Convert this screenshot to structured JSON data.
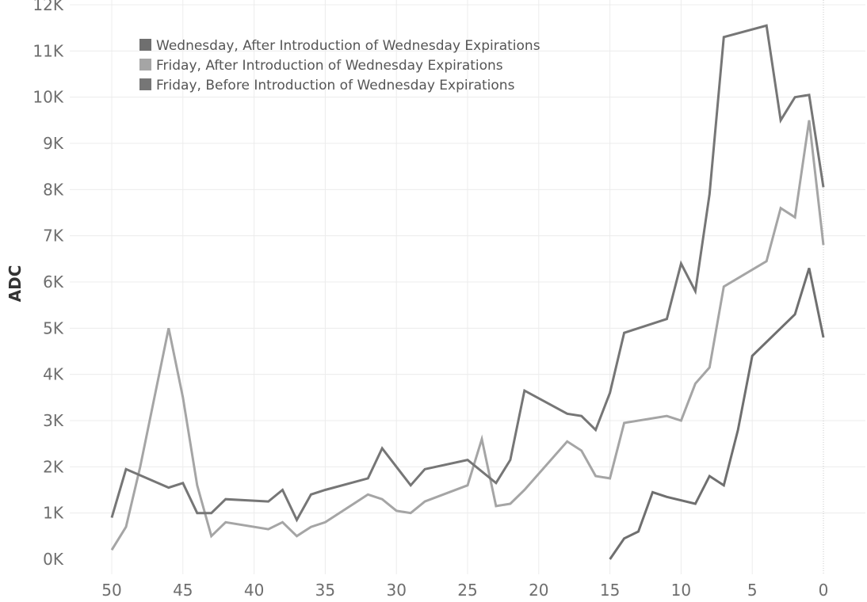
{
  "chart_data": {
    "type": "line",
    "title": "",
    "xlabel": "",
    "ylabel": "ADC",
    "xlim": [
      50,
      0
    ],
    "x_reversed": true,
    "ylim": [
      0,
      12000
    ],
    "x_ticks": [
      "50",
      "45",
      "40",
      "35",
      "30",
      "25",
      "20",
      "15",
      "10",
      "5",
      "0"
    ],
    "x_tick_values": [
      50,
      45,
      40,
      35,
      30,
      25,
      20,
      15,
      10,
      5,
      0
    ],
    "y_ticks": [
      "0K",
      "1K",
      "2K",
      "3K",
      "4K",
      "5K",
      "6K",
      "7K",
      "8K",
      "9K",
      "10K",
      "11K",
      "12K"
    ],
    "y_tick_values": [
      0,
      1000,
      2000,
      3000,
      4000,
      5000,
      6000,
      7000,
      8000,
      9000,
      10000,
      11000,
      12000
    ],
    "grid": true,
    "legend_position": "top-left",
    "series": [
      {
        "name": "Wednesday, After Introduction of Wednesday Expirations",
        "color": "#6f6f6f",
        "points": [
          [
            15,
            0
          ],
          [
            14,
            450
          ],
          [
            13,
            600
          ],
          [
            12,
            1450
          ],
          [
            11,
            1350
          ],
          [
            9,
            1200
          ],
          [
            8,
            1800
          ],
          [
            7,
            1600
          ],
          [
            6,
            2800
          ],
          [
            5,
            4400
          ],
          [
            2,
            5300
          ],
          [
            1,
            6300
          ],
          [
            0,
            4800
          ]
        ]
      },
      {
        "name": "Friday, After Introduction of Wednesday Expirations",
        "color": "#a5a5a5",
        "points": [
          [
            50,
            200
          ],
          [
            49,
            700
          ],
          [
            48,
            2000
          ],
          [
            46,
            5000
          ],
          [
            45,
            3500
          ],
          [
            44,
            1600
          ],
          [
            43,
            500
          ],
          [
            42,
            800
          ],
          [
            39,
            650
          ],
          [
            38,
            800
          ],
          [
            37,
            500
          ],
          [
            36,
            700
          ],
          [
            35,
            800
          ],
          [
            32,
            1400
          ],
          [
            31,
            1300
          ],
          [
            30,
            1050
          ],
          [
            29,
            1000
          ],
          [
            28,
            1250
          ],
          [
            25,
            1600
          ],
          [
            24,
            2600
          ],
          [
            23,
            1150
          ],
          [
            22,
            1200
          ],
          [
            21,
            1500
          ],
          [
            18,
            2550
          ],
          [
            17,
            2350
          ],
          [
            16,
            1800
          ],
          [
            15,
            1750
          ],
          [
            14,
            2950
          ],
          [
            11,
            3100
          ],
          [
            10,
            3000
          ],
          [
            9,
            3800
          ],
          [
            8,
            4150
          ],
          [
            7,
            5900
          ],
          [
            4,
            6450
          ],
          [
            3,
            7600
          ],
          [
            2,
            7400
          ],
          [
            1,
            9500
          ],
          [
            0,
            6800
          ]
        ]
      },
      {
        "name": "Friday, Before Introduction of Wednesday Expirations",
        "color": "#767676",
        "points": [
          [
            50,
            900
          ],
          [
            49,
            1950
          ],
          [
            46,
            1550
          ],
          [
            45,
            1650
          ],
          [
            44,
            1000
          ],
          [
            43,
            1000
          ],
          [
            42,
            1300
          ],
          [
            39,
            1250
          ],
          [
            38,
            1500
          ],
          [
            37,
            850
          ],
          [
            36,
            1400
          ],
          [
            35,
            1500
          ],
          [
            32,
            1750
          ],
          [
            31,
            2400
          ],
          [
            29,
            1600
          ],
          [
            28,
            1950
          ],
          [
            25,
            2150
          ],
          [
            23,
            1650
          ],
          [
            22,
            2150
          ],
          [
            21,
            3650
          ],
          [
            18,
            3150
          ],
          [
            17,
            3100
          ],
          [
            16,
            2800
          ],
          [
            15,
            3600
          ],
          [
            14,
            4900
          ],
          [
            11,
            5200
          ],
          [
            10,
            6400
          ],
          [
            9,
            5800
          ],
          [
            8,
            7900
          ],
          [
            7,
            11300
          ],
          [
            4,
            11550
          ],
          [
            3,
            9500
          ],
          [
            2,
            10000
          ],
          [
            1,
            10050
          ],
          [
            0,
            8050
          ]
        ]
      }
    ]
  }
}
